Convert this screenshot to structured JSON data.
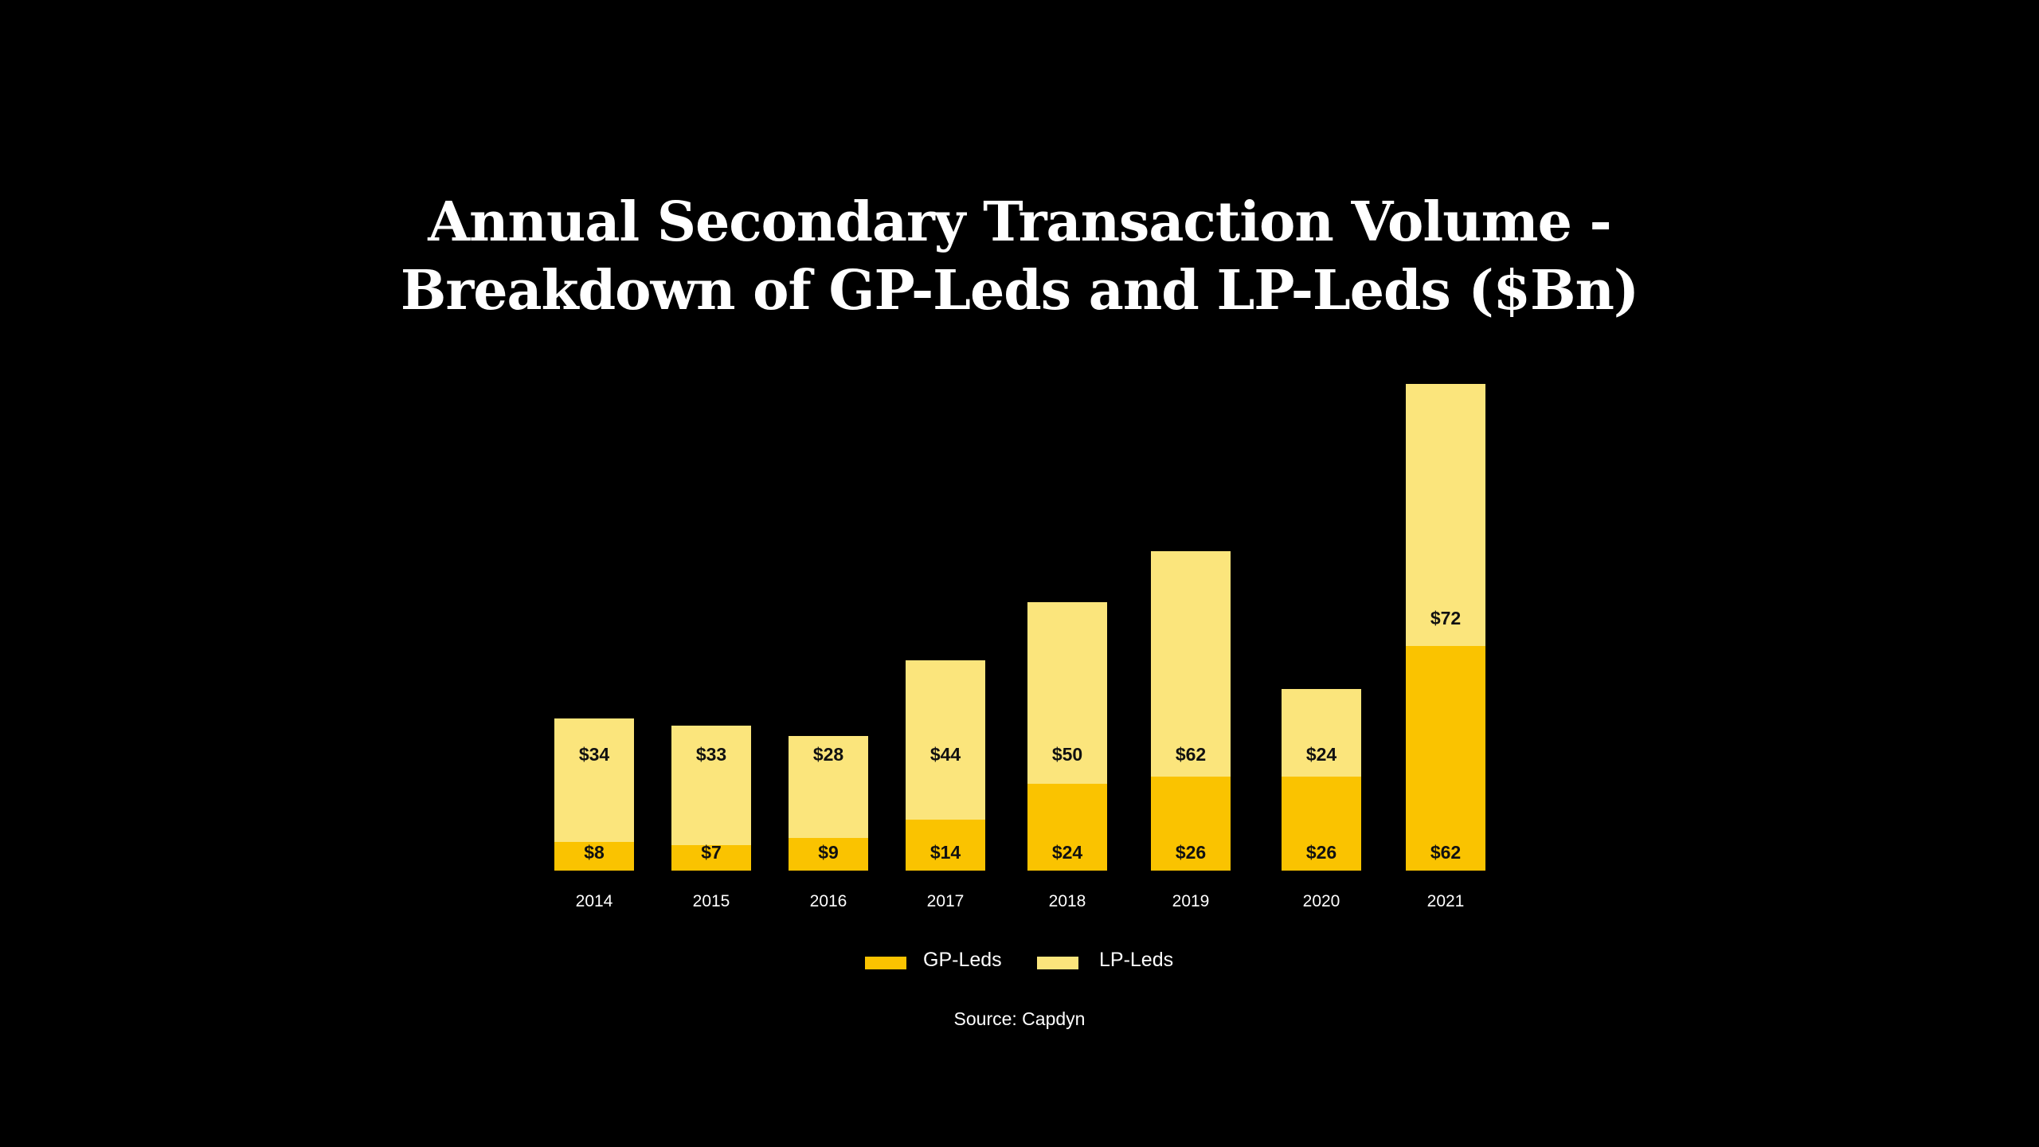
{
  "title_line1": "Annual Secondary Transaction Volume -",
  "title_line2": "Breakdown of GP-Leds and LP-Leds ($Bn)",
  "legend": {
    "gp": "GP-Leds",
    "lp": "LP-Leds"
  },
  "source": "Source: Capdyn",
  "colors": {
    "gp": "#FAC300",
    "lp": "#FBE57C",
    "background": "#000000"
  },
  "bars": [
    {
      "year": "2014",
      "gp": 8,
      "lp": 34,
      "gp_label": "$8",
      "lp_label": "$34"
    },
    {
      "year": "2015",
      "gp": 7,
      "lp": 33,
      "gp_label": "$7",
      "lp_label": "$33"
    },
    {
      "year": "2016",
      "gp": 9,
      "lp": 28,
      "gp_label": "$9",
      "lp_label": "$28"
    },
    {
      "year": "2017",
      "gp": 14,
      "lp": 44,
      "gp_label": "$14",
      "lp_label": "$44"
    },
    {
      "year": "2018",
      "gp": 24,
      "lp": 50,
      "gp_label": "$24",
      "lp_label": "$50"
    },
    {
      "year": "2019",
      "gp": 26,
      "lp": 62,
      "gp_label": "$26",
      "lp_label": "$62"
    },
    {
      "year": "2020",
      "gp": 26,
      "lp": 24,
      "gp_label": "$26",
      "lp_label": "$24"
    },
    {
      "year": "2021",
      "gp": 62,
      "lp": 72,
      "gp_label": "$62",
      "lp_label": "$72"
    }
  ],
  "chart_data": {
    "type": "bar",
    "stacked": true,
    "title": "Annual Secondary Transaction Volume - Breakdown of GP-Leds and LP-Leds ($Bn)",
    "categories": [
      "2014",
      "2015",
      "2016",
      "2017",
      "2018",
      "2019",
      "2020",
      "2021"
    ],
    "series": [
      {
        "name": "GP-Leds",
        "values": [
          8,
          7,
          9,
          14,
          24,
          26,
          26,
          62
        ]
      },
      {
        "name": "LP-Leds",
        "values": [
          34,
          33,
          28,
          44,
          50,
          62,
          24,
          72
        ]
      }
    ],
    "xlabel": "",
    "ylabel": "",
    "grid": false,
    "legend_position": "bottom",
    "annotations": [
      "Source: Capdyn"
    ]
  }
}
